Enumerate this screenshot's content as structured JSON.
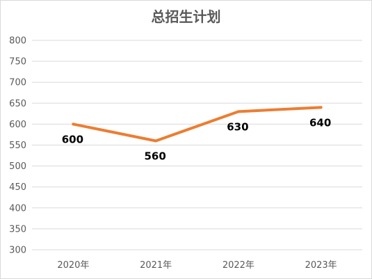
{
  "chart_data": {
    "type": "line",
    "title": "总招生计划",
    "categories": [
      "2020年",
      "2021年",
      "2022年",
      "2023年"
    ],
    "series": [
      {
        "values": [
          600,
          560,
          630,
          640
        ]
      }
    ],
    "data_labels": [
      "600",
      "560",
      "630",
      "640"
    ],
    "ylim": [
      300,
      800
    ],
    "yticks": [
      300,
      350,
      400,
      450,
      500,
      550,
      600,
      650,
      700,
      750,
      800
    ],
    "grid": true,
    "line_color": "#ED7D31",
    "legend": "none"
  }
}
